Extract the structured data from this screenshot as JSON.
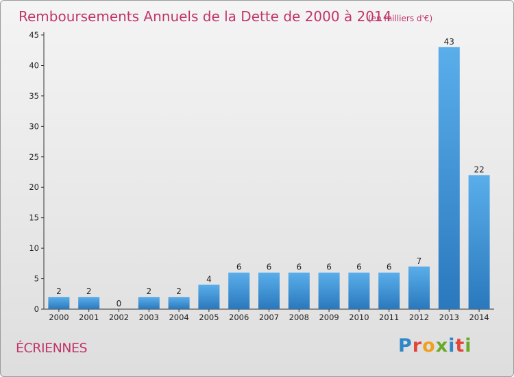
{
  "chart_data": {
    "type": "bar",
    "title": "Remboursements Annuels de la Dette de 2000 à 2014",
    "subtitle": "(en milliers d'€)",
    "categories": [
      "2000",
      "2001",
      "2002",
      "2003",
      "2004",
      "2005",
      "2006",
      "2007",
      "2008",
      "2009",
      "2010",
      "2011",
      "2012",
      "2013",
      "2014"
    ],
    "values": [
      2,
      2,
      0,
      2,
      2,
      4,
      6,
      6,
      6,
      6,
      6,
      6,
      7,
      43,
      22
    ],
    "xlabel": "",
    "ylabel": "",
    "ylim": [
      0,
      45
    ],
    "yticks": [
      0,
      5,
      10,
      15,
      20,
      25,
      30,
      35,
      40,
      45
    ],
    "grid": false,
    "data_labels": true,
    "bar_color": "#3d8fd6"
  },
  "footer": {
    "commune": "ÉCRIENNES",
    "logo_letters": [
      {
        "ch": "P",
        "color": "#2f86c8"
      },
      {
        "ch": "r",
        "color": "#e2463a"
      },
      {
        "ch": "o",
        "color": "#f0a020"
      },
      {
        "ch": "x",
        "color": "#6aaa2a"
      },
      {
        "ch": "i",
        "color": "#2f86c8"
      },
      {
        "ch": "t",
        "color": "#e2463a"
      },
      {
        "ch": "i",
        "color": "#6aaa2a"
      }
    ]
  }
}
